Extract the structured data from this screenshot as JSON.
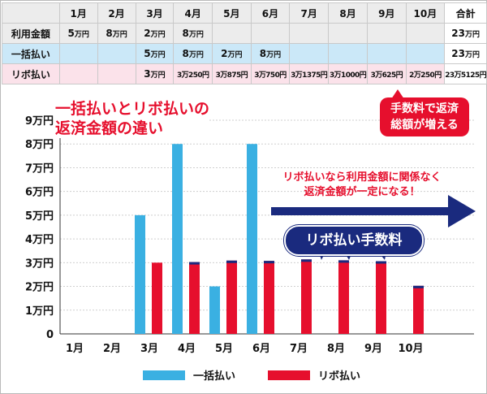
{
  "table": {
    "headers": [
      "",
      "1月",
      "2月",
      "3月",
      "4月",
      "5月",
      "6月",
      "7月",
      "8月",
      "9月",
      "10月",
      "合計"
    ],
    "rows": [
      {
        "label": "利用金額",
        "cells": [
          "5",
          "8",
          "2",
          "8",
          "",
          "",
          "",
          "",
          "",
          "",
          "23"
        ]
      },
      {
        "label": "一括払い",
        "cells": [
          "",
          "",
          "5",
          "8",
          "2",
          "8",
          "",
          "",
          "",
          "",
          "23"
        ]
      },
      {
        "label": "リボ払い",
        "cells": [
          "",
          "",
          "3",
          "3万250円",
          "3万875円",
          "3万750円",
          "3万1375円",
          "3万1000円",
          "3万625円",
          "2万250円",
          "23万5125円"
        ]
      }
    ],
    "unit": "万円"
  },
  "annotations": {
    "title_line1": "一括払いとリボ払いの",
    "title_line2": "返済金額の違い",
    "callout_line1": "手数料で返済",
    "callout_line2": "総額が増える",
    "note_line1": "リボ払いなら利用金額に関係なく",
    "note_line2": "返済金額が一定になる！",
    "fee_label": "リボ払い手数料"
  },
  "colors": {
    "lump": "#3ab0e2",
    "revo": "#e60f2d",
    "fee": "#1a2a7e",
    "arrow": "#1a2a7e"
  },
  "chart_data": {
    "type": "bar",
    "categories": [
      "1月",
      "2月",
      "3月",
      "4月",
      "5月",
      "6月",
      "7月",
      "8月",
      "9月",
      "10月"
    ],
    "y_ticks": [
      "0",
      "1万円",
      "2万円",
      "3万円",
      "4万円",
      "5万円",
      "6万円",
      "7万円",
      "8万円",
      "9万円"
    ],
    "ylim": [
      0,
      90000
    ],
    "series": [
      {
        "name": "一括払い",
        "values": [
          0,
          0,
          50000,
          80000,
          20000,
          80000,
          0,
          0,
          0,
          0
        ]
      },
      {
        "name": "リボ払い",
        "values": [
          0,
          0,
          30000,
          30250,
          30875,
          30750,
          31375,
          31000,
          30625,
          20250
        ],
        "fees": [
          0,
          0,
          0,
          250,
          875,
          750,
          1375,
          1000,
          625,
          250
        ]
      }
    ],
    "legend": [
      "一括払い",
      "リボ払い"
    ],
    "legend_position": "bottom",
    "grid": "horizontal"
  }
}
